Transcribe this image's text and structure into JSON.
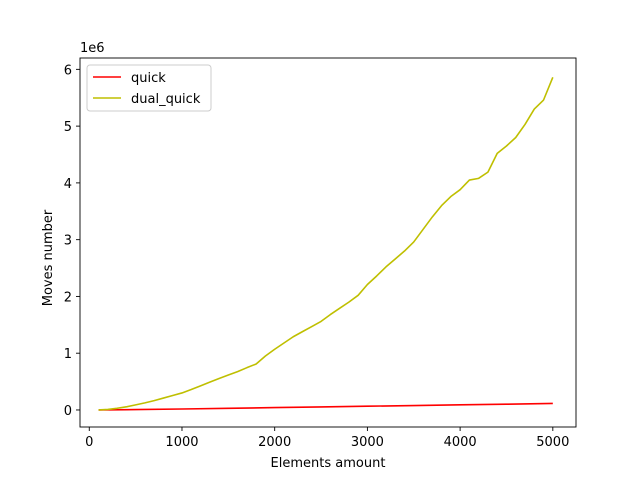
{
  "chart_data": {
    "type": "line",
    "title": "",
    "xlabel": "Elements amount",
    "ylabel": "Moves number",
    "y_offset_text": "1e6",
    "xlim": [
      -100,
      5250
    ],
    "ylim": [
      -300000,
      6200000
    ],
    "x_ticks": [
      0,
      1000,
      2000,
      3000,
      4000,
      5000
    ],
    "x_tick_labels": [
      "0",
      "1000",
      "2000",
      "3000",
      "4000",
      "5000"
    ],
    "y_ticks": [
      0,
      1000000,
      2000000,
      3000000,
      4000000,
      5000000,
      6000000
    ],
    "y_tick_labels": [
      "0",
      "1",
      "2",
      "3",
      "4",
      "5",
      "6"
    ],
    "grid": false,
    "legend_position": "upper-left",
    "series": [
      {
        "name": "quick",
        "color": "#ff0000",
        "x": [
          100,
          500,
          1000,
          1500,
          2000,
          2500,
          3000,
          3500,
          4000,
          4500,
          5000
        ],
        "y": [
          1000,
          7000,
          17000,
          29000,
          42000,
          54000,
          66000,
          78000,
          90000,
          102000,
          115000
        ]
      },
      {
        "name": "dual_quick",
        "color": "#bfbf00",
        "x": [
          100,
          200,
          300,
          400,
          500,
          600,
          700,
          800,
          900,
          1000,
          1100,
          1200,
          1300,
          1400,
          1500,
          1600,
          1700,
          1800,
          1900,
          2000,
          2100,
          2200,
          2300,
          2400,
          2500,
          2600,
          2700,
          2800,
          2900,
          3000,
          3100,
          3200,
          3300,
          3400,
          3500,
          3600,
          3700,
          3800,
          3900,
          4000,
          4100,
          4200,
          4300,
          4400,
          4500,
          4600,
          4700,
          4800,
          4900,
          5000
        ],
        "y": [
          0,
          10000,
          30000,
          55000,
          90000,
          125000,
          165000,
          210000,
          255000,
          300000,
          360000,
          425000,
          490000,
          555000,
          615000,
          675000,
          745000,
          810000,
          950000,
          1070000,
          1180000,
          1290000,
          1380000,
          1470000,
          1560000,
          1680000,
          1790000,
          1900000,
          2020000,
          2210000,
          2360000,
          2520000,
          2660000,
          2800000,
          2960000,
          3180000,
          3400000,
          3600000,
          3760000,
          3880000,
          4050000,
          4080000,
          4190000,
          4520000,
          4650000,
          4800000,
          5030000,
          5300000,
          5460000,
          5860000
        ]
      }
    ]
  }
}
